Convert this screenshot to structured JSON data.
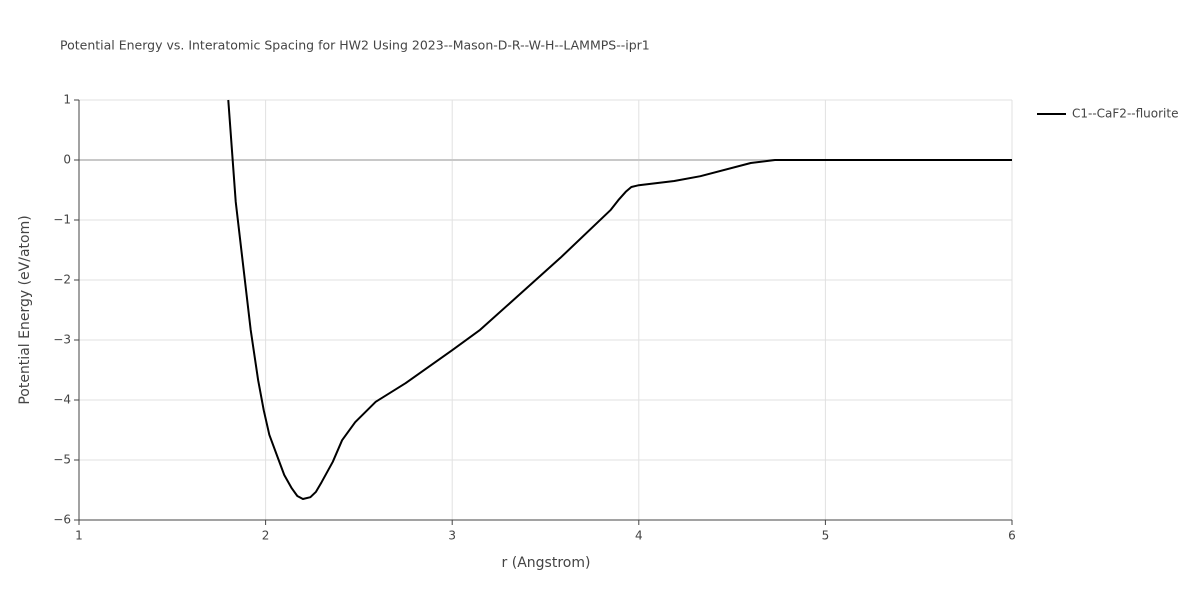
{
  "chart_data": {
    "type": "line",
    "title": "Potential Energy vs. Interatomic Spacing for HW2 Using 2023--Mason-D-R--W-H--LAMMPS--ipr1",
    "x_label": "r (Angstrom)",
    "y_label": "Potential Energy (eV/atom)",
    "x": [
      1.8,
      1.84,
      1.92,
      1.96,
      1.99,
      2.02,
      2.07,
      2.1,
      2.14,
      2.17,
      2.2,
      2.24,
      2.27,
      2.3,
      2.36,
      2.41,
      2.48,
      2.59,
      2.75,
      3.0,
      3.15,
      3.34,
      3.58,
      3.85,
      3.89,
      3.93,
      3.96,
      4.0,
      4.19,
      4.33,
      4.6,
      4.73,
      5.0,
      6.0
    ],
    "series": [
      {
        "name": "C1--CaF2--fluorite",
        "color": "#000000",
        "values": [
          1.0,
          -0.7,
          -2.83,
          -3.67,
          -4.17,
          -4.58,
          -5.0,
          -5.25,
          -5.47,
          -5.6,
          -5.65,
          -5.62,
          -5.53,
          -5.37,
          -5.03,
          -4.67,
          -4.37,
          -4.03,
          -3.72,
          -3.17,
          -2.83,
          -2.3,
          -1.63,
          -0.83,
          -0.67,
          -0.53,
          -0.45,
          -0.42,
          -0.35,
          -0.27,
          -0.05,
          0.0,
          0.0,
          0.0
        ]
      }
    ],
    "xlim": [
      1,
      6
    ],
    "ylim": [
      -6,
      1
    ],
    "xticks": [
      1,
      2,
      3,
      4,
      5,
      6
    ],
    "yticks": [
      1,
      0,
      {
        "value": -1,
        "label": "−1"
      },
      {
        "value": -2,
        "label": "−2"
      },
      {
        "value": -3,
        "label": "−3"
      },
      {
        "value": -4,
        "label": "−4"
      },
      {
        "value": -5,
        "label": "−5"
      },
      {
        "value": -6,
        "label": "−6"
      }
    ],
    "grid": true,
    "legend": "right"
  }
}
